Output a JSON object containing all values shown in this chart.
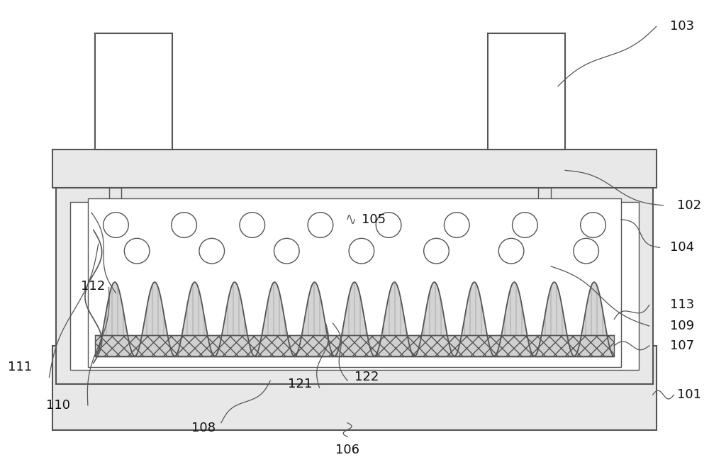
{
  "bg_color": "#ffffff",
  "line_color": "#555555",
  "plate_fill": "#e8e8e8",
  "white_fill": "#ffffff",
  "wave_fill": "#d0d0d0",
  "cross_fill": "#c8c8c8",
  "figsize": [
    10.0,
    6.52
  ],
  "dpi": 100,
  "label_fs": 13
}
